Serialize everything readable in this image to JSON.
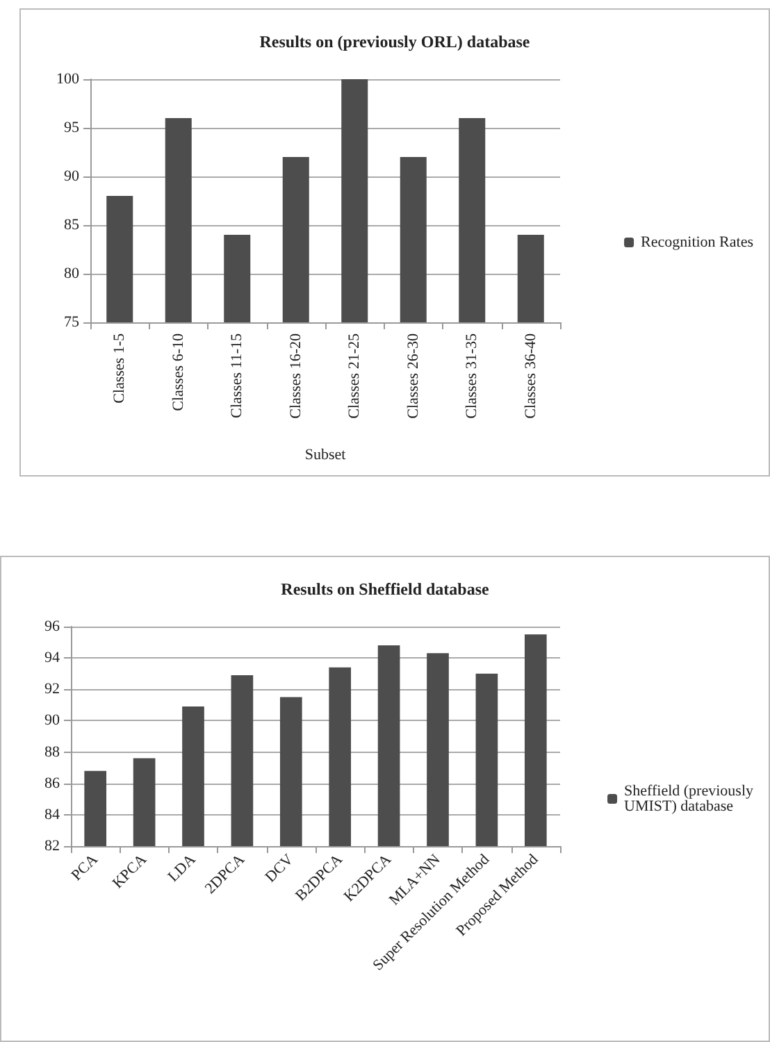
{
  "chart_data": [
    {
      "type": "bar",
      "title": "Results on (previously ORL) database",
      "xlabel": "Subset",
      "categories": [
        "Classes 1-5",
        "Classes 6-10",
        "Classes 11-15",
        "Classes 16-20",
        "Classes 21-25",
        "Classes 26-30",
        "Classes 31-35",
        "Classes 36-40"
      ],
      "series": [
        {
          "name": "Recognition Rates",
          "color": "#4d4d4d",
          "values": [
            88,
            96,
            84,
            92,
            100,
            92,
            96,
            84
          ]
        }
      ],
      "ylim": [
        75,
        100
      ],
      "yticks": [
        75,
        80,
        85,
        90,
        95,
        100
      ],
      "grid": "y",
      "legend": "right"
    },
    {
      "type": "bar",
      "title": "Results on Sheffield database",
      "categories": [
        "PCA",
        "KPCA",
        "LDA",
        "2DPCA",
        "DCV",
        "B2DPCA",
        "K2DPCA",
        "MLA+NN",
        "Super Resolution Method",
        "Proposed Method"
      ],
      "series": [
        {
          "name": "Sheffield (previously\nUMIST) database",
          "color": "#4d4d4d",
          "values": [
            86.8,
            87.6,
            90.9,
            92.9,
            91.5,
            93.4,
            94.8,
            94.3,
            93,
            95.5
          ]
        }
      ],
      "ylim": [
        82,
        96
      ],
      "yticks": [
        82,
        84,
        86,
        88,
        90,
        92,
        94,
        96
      ],
      "grid": "y",
      "legend": "right"
    }
  ]
}
